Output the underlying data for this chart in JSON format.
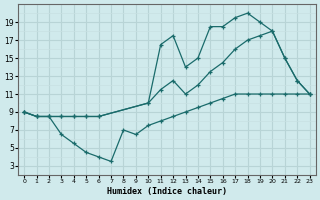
{
  "title": "",
  "xlabel": "Humidex (Indice chaleur)",
  "bg_color": "#d0eaec",
  "grid_color_major": "#b8d4d6",
  "grid_color_minor": "#c8e0e2",
  "line_color": "#1a6b6b",
  "xlim": [
    -0.5,
    23.5
  ],
  "ylim": [
    2,
    21
  ],
  "xticks": [
    0,
    1,
    2,
    3,
    4,
    5,
    6,
    7,
    8,
    9,
    10,
    11,
    12,
    13,
    14,
    15,
    16,
    17,
    18,
    19,
    20,
    21,
    22,
    23
  ],
  "yticks": [
    3,
    5,
    7,
    9,
    11,
    13,
    15,
    17,
    19
  ],
  "line_top_x": [
    0,
    1,
    2,
    3,
    4,
    5,
    6,
    10,
    11,
    12,
    13,
    14,
    15,
    16,
    17,
    18,
    19,
    20,
    21,
    22,
    23
  ],
  "line_top_y": [
    9,
    8.5,
    8.5,
    8.5,
    8.5,
    8.5,
    8.5,
    10,
    16.5,
    17.5,
    14,
    15,
    18.5,
    18.5,
    19.5,
    20,
    19,
    18,
    15,
    12.5,
    11
  ],
  "line_mid_x": [
    0,
    1,
    2,
    3,
    4,
    5,
    6,
    10,
    11,
    12,
    13,
    14,
    15,
    16,
    17,
    18,
    19,
    20,
    21,
    22,
    23
  ],
  "line_mid_y": [
    9,
    8.5,
    8.5,
    8.5,
    8.5,
    8.5,
    8.5,
    10,
    11.5,
    12.5,
    11,
    12,
    13.5,
    14.5,
    16,
    17,
    17.5,
    18,
    15,
    12.5,
    11
  ],
  "line_bot_x": [
    0,
    1,
    2,
    3,
    4,
    5,
    6,
    7,
    8,
    9,
    10,
    11,
    12,
    13,
    14,
    15,
    16,
    17,
    18,
    19,
    20,
    21,
    22,
    23
  ],
  "line_bot_y": [
    9,
    8.5,
    8.5,
    6.5,
    5.5,
    4.5,
    4,
    3.5,
    7,
    6.5,
    7.5,
    8,
    8.5,
    9,
    9.5,
    10,
    10.5,
    11,
    11,
    11,
    11,
    11,
    11,
    11
  ]
}
